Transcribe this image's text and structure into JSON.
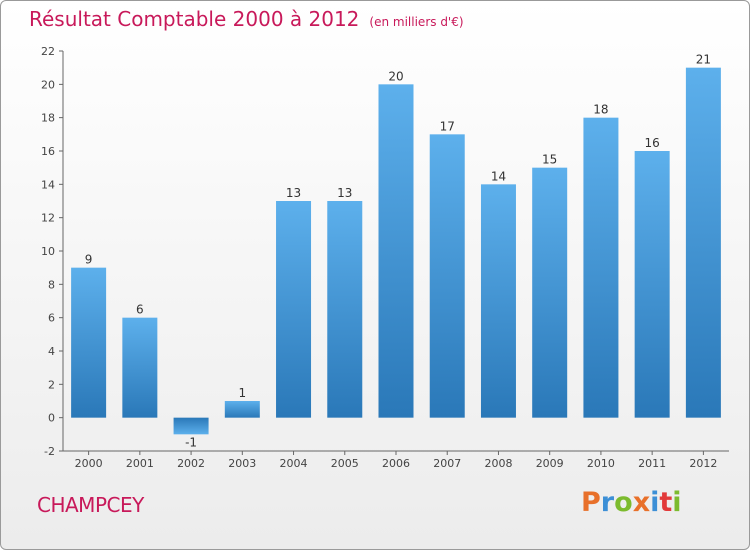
{
  "title": "Résultat Comptable 2000 à 2012",
  "subtitle": "(en milliers d'€)",
  "commune": "CHAMPCEY",
  "logo": {
    "letters": [
      "P",
      "r",
      "o",
      "x",
      "i",
      "t",
      "i"
    ],
    "colors": [
      "#e8702a",
      "#3c8fd6",
      "#7cbb2e",
      "#e8702a",
      "#3c8fd6",
      "#e23a3a",
      "#7cbb2e"
    ]
  },
  "chart_data": {
    "type": "bar",
    "categories": [
      "2000",
      "2001",
      "2002",
      "2003",
      "2004",
      "2005",
      "2006",
      "2007",
      "2008",
      "2009",
      "2010",
      "2011",
      "2012"
    ],
    "values": [
      9,
      6,
      -1,
      1,
      13,
      13,
      20,
      17,
      14,
      15,
      18,
      16,
      21
    ],
    "data_labels": [
      "9",
      "6",
      "-1",
      "1",
      "13",
      "13",
      "20",
      "17",
      "14",
      "15",
      "18",
      "16",
      "21"
    ],
    "y_ticks": [
      "-2",
      "0",
      "2",
      "4",
      "6",
      "8",
      "10",
      "12",
      "14",
      "16",
      "18",
      "20",
      "22"
    ],
    "ylim": [
      -2,
      22
    ],
    "grid": false,
    "bar_color": "#4a9fe0"
  }
}
